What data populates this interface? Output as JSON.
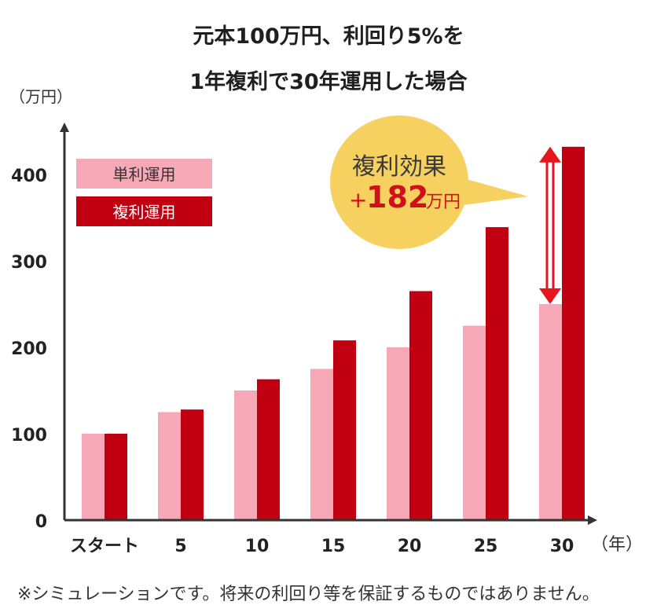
{
  "chart_data": {
    "type": "bar",
    "title": [
      "元本100万円、利回り5%を",
      "1年複利で30年運用した場合"
    ],
    "ylabel": "（万円）",
    "xlabel": "（年）",
    "categories": [
      "スタート",
      "5",
      "10",
      "15",
      "20",
      "25",
      "30"
    ],
    "yticks": [
      "0",
      "100",
      "200",
      "300",
      "400"
    ],
    "ylim": [
      0,
      450
    ],
    "grid": false,
    "legend_position": "top-left",
    "series": [
      {
        "name": "単利運用",
        "color": "#f7a8b6",
        "values": [
          100,
          125,
          150,
          175,
          200,
          225,
          250
        ]
      },
      {
        "name": "複利運用",
        "color": "#c00010",
        "values": [
          100,
          128,
          163,
          208,
          265,
          339,
          432
        ]
      }
    ],
    "annotation": {
      "label": "複利効果",
      "value_prefix": "+",
      "value": "182",
      "unit": "万円",
      "bubble_color": "#f6d160",
      "label_color": "#3a3a3a",
      "value_color": "#d0101a",
      "arrow_color": "#e8141c"
    },
    "axis_color": "#333333"
  },
  "footnote": "※シミュレーションです。将来の利回り等を保証するものではありません。"
}
